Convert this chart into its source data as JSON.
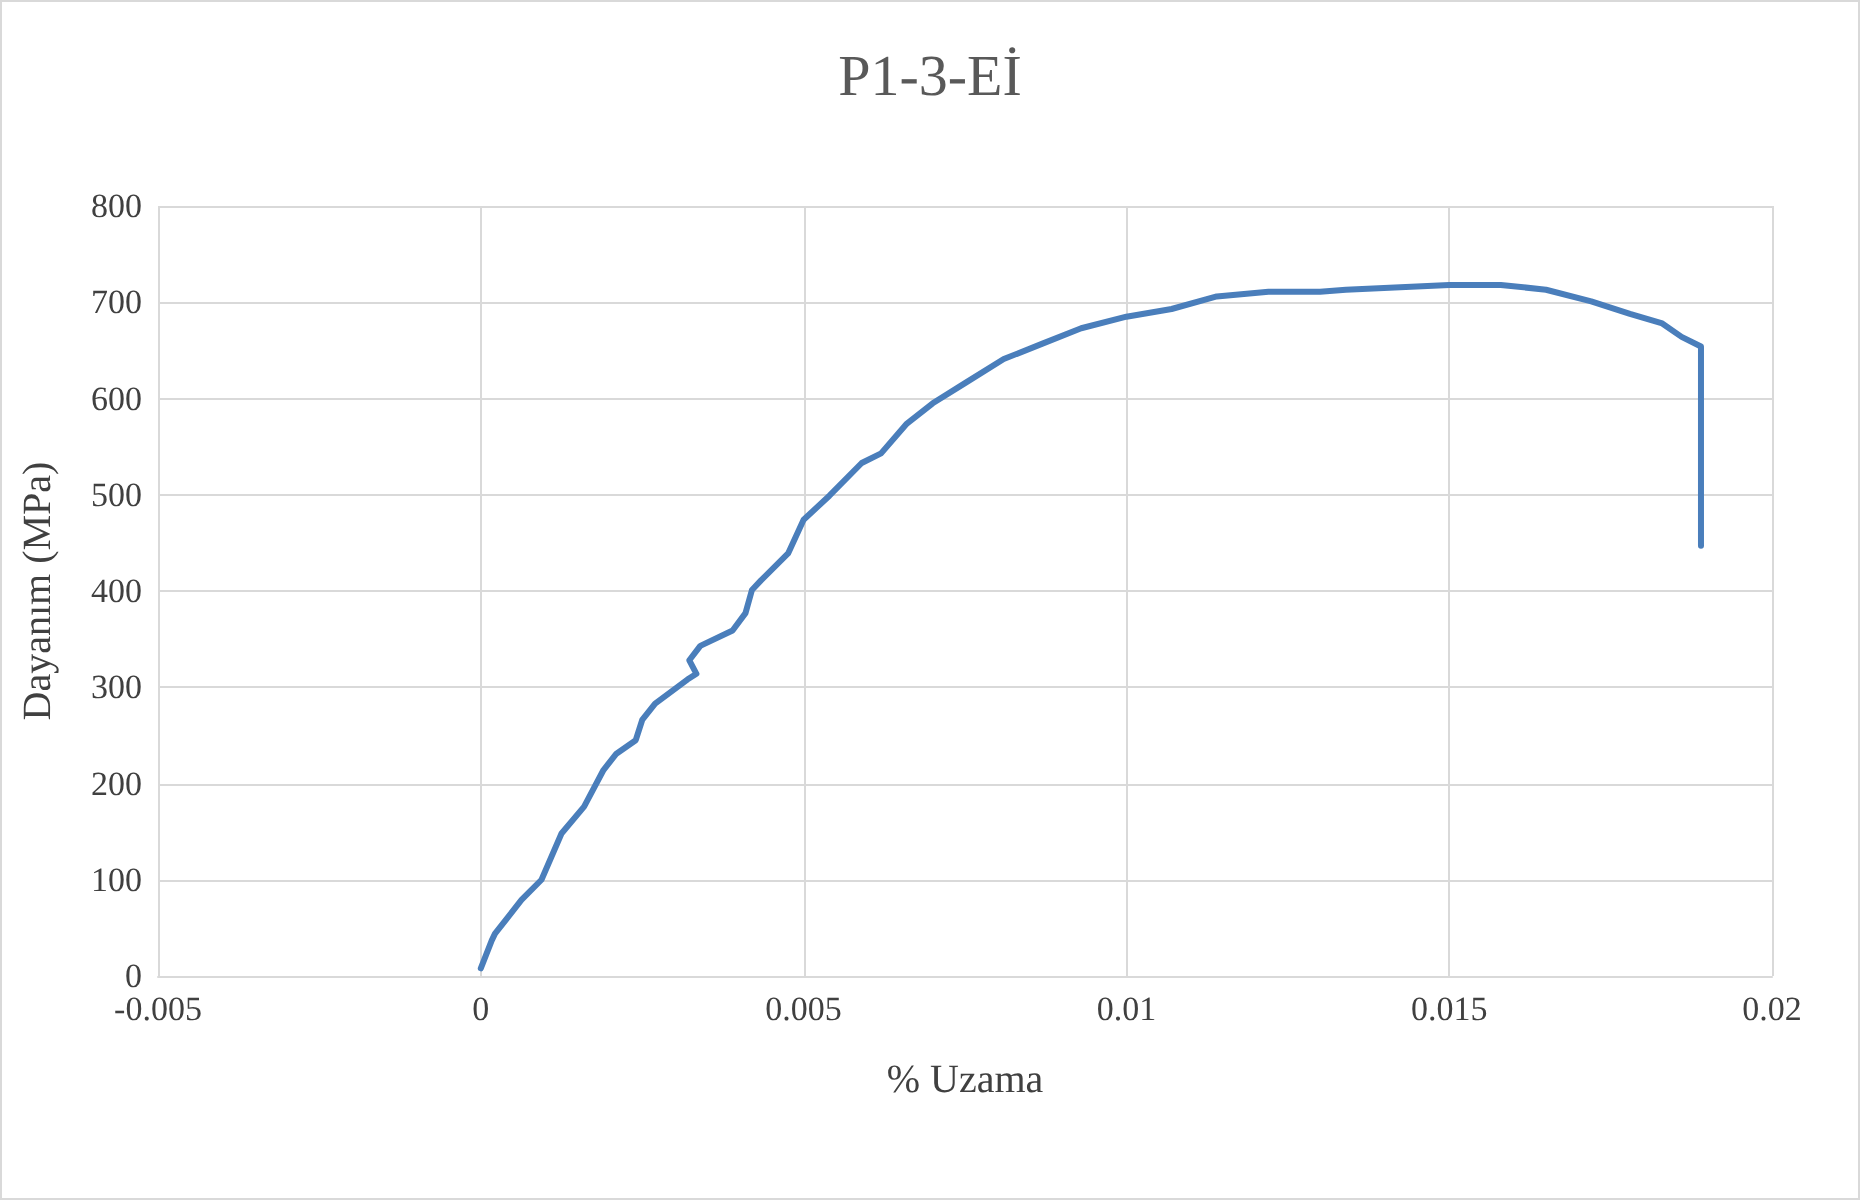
{
  "chart_data": {
    "type": "line",
    "title": "P1-3-Eİ",
    "xlabel": "% Uzama",
    "ylabel": "Dayanım (MPa)",
    "xlim": [
      -0.005,
      0.02
    ],
    "xticks": [
      -0.005,
      0,
      0.005,
      0.01,
      0.015,
      0.02
    ],
    "ylim": [
      0,
      800
    ],
    "yticks": [
      0,
      100,
      200,
      300,
      400,
      500,
      600,
      700,
      800
    ],
    "grid": true,
    "marker": "none",
    "line_style": "solid",
    "series": [
      {
        "color": "#4a7ebb",
        "x": [
          0,
          0.00017,
          0.00022,
          0.00063,
          0.00094,
          0.00125,
          0.0016,
          0.0019,
          0.0021,
          0.0024,
          0.0025,
          0.0027,
          0.0032,
          0.00334,
          0.00323,
          0.0034,
          0.0039,
          0.0041,
          0.0042,
          0.00434,
          0.00476,
          0.005,
          0.0054,
          0.0059,
          0.0062,
          0.0066,
          0.007,
          0.0075,
          0.0081,
          0.0087,
          0.0093,
          0.01,
          0.0107,
          0.0114,
          0.0122,
          0.013,
          0.0134,
          0.015,
          0.0158,
          0.0165,
          0.0172,
          0.0178,
          0.0183,
          0.0186,
          0.0189,
          0.0189
        ],
        "values": [
          8,
          37,
          44,
          79,
          100,
          148,
          176,
          214,
          231,
          245,
          266,
          283,
          308,
          314,
          328,
          343,
          359,
          377,
          401,
          411,
          439,
          474,
          499,
          533,
          543,
          574,
          595,
          616,
          641,
          657,
          673,
          685,
          693,
          706,
          711,
          711,
          713,
          718,
          718,
          713,
          701,
          688,
          678,
          664,
          654,
          447
        ]
      }
    ]
  }
}
